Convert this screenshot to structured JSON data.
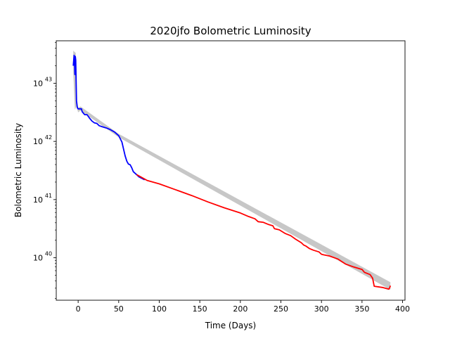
{
  "chart_data": {
    "type": "line",
    "title": "2020jfo Bolometric Luminosity",
    "xlabel": "Time (Days)",
    "ylabel": "Bolometric Luminosity",
    "xlim": [
      -27,
      403
    ],
    "ylim_log10": [
      39.27,
      43.73
    ],
    "y_scale": "log",
    "grid": false,
    "x_ticks": [
      0,
      50,
      100,
      150,
      200,
      250,
      300,
      350,
      400
    ],
    "y_ticks": [
      {
        "base": "10",
        "exp": "40",
        "log10": 40
      },
      {
        "base": "10",
        "exp": "41",
        "log10": 41
      },
      {
        "base": "10",
        "exp": "42",
        "log10": 42
      },
      {
        "base": "10",
        "exp": "43",
        "log10": 43
      }
    ],
    "uncertainty_band": {
      "color": "#999999",
      "upper": [
        [
          -6,
          43.56
        ],
        [
          -3,
          43.52
        ],
        [
          -2,
          42.7
        ],
        [
          0,
          42.58
        ],
        [
          3,
          42.6
        ],
        [
          50,
          42.13
        ],
        [
          385,
          39.58
        ]
      ],
      "lower": [
        [
          385,
          39.45
        ],
        [
          50,
          42.07
        ],
        [
          3,
          42.53
        ],
        [
          0,
          42.5
        ],
        [
          -2,
          42.6
        ],
        [
          -4,
          42.55
        ],
        [
          -6,
          43.2
        ]
      ]
    },
    "series": [
      {
        "color": "#0000ff",
        "points": [
          [
            -6,
            43.3
          ],
          [
            -5,
            43.48
          ],
          [
            -4.5,
            43.38
          ],
          [
            -4,
            43.15
          ],
          [
            -3.5,
            43.46
          ],
          [
            -3,
            43.4
          ],
          [
            -2,
            42.7
          ],
          [
            -1,
            42.58
          ],
          [
            0,
            42.56
          ],
          [
            2,
            42.56
          ],
          [
            4,
            42.56
          ],
          [
            5,
            42.51
          ],
          [
            8,
            42.46
          ],
          [
            11,
            42.46
          ],
          [
            14,
            42.4
          ],
          [
            17,
            42.35
          ],
          [
            20,
            42.32
          ],
          [
            23,
            42.31
          ],
          [
            26,
            42.27
          ],
          [
            30,
            42.25
          ],
          [
            35,
            42.23
          ],
          [
            40,
            42.2
          ],
          [
            45,
            42.16
          ],
          [
            50,
            42.1
          ],
          [
            54,
            41.99
          ],
          [
            56,
            41.87
          ],
          [
            58,
            41.75
          ],
          [
            60,
            41.66
          ],
          [
            62,
            41.61
          ],
          [
            64,
            41.6
          ],
          [
            66,
            41.55
          ],
          [
            68,
            41.48
          ],
          [
            72,
            41.43
          ],
          [
            75,
            41.39
          ],
          [
            78,
            41.37
          ],
          [
            82,
            41.34
          ]
        ]
      },
      {
        "color": "#ff0000",
        "points": [
          [
            72,
            41.43
          ],
          [
            85,
            41.33
          ],
          [
            100,
            41.27
          ],
          [
            120,
            41.17
          ],
          [
            140,
            41.07
          ],
          [
            160,
            40.96
          ],
          [
            180,
            40.86
          ],
          [
            200,
            40.77
          ],
          [
            210,
            40.71
          ],
          [
            218,
            40.67
          ],
          [
            222,
            40.62
          ],
          [
            228,
            40.61
          ],
          [
            235,
            40.57
          ],
          [
            240,
            40.55
          ],
          [
            242,
            40.5
          ],
          [
            248,
            40.48
          ],
          [
            255,
            40.42
          ],
          [
            262,
            40.38
          ],
          [
            268,
            40.32
          ],
          [
            275,
            40.26
          ],
          [
            278,
            40.22
          ],
          [
            281,
            40.2
          ],
          [
            285,
            40.16
          ],
          [
            290,
            40.13
          ],
          [
            297,
            40.1
          ],
          [
            300,
            40.06
          ],
          [
            303,
            40.05
          ],
          [
            310,
            40.03
          ],
          [
            320,
            39.98
          ],
          [
            330,
            39.89
          ],
          [
            340,
            39.84
          ],
          [
            350,
            39.8
          ],
          [
            353,
            39.75
          ],
          [
            360,
            39.71
          ],
          [
            363,
            39.65
          ],
          [
            365,
            39.51
          ],
          [
            375,
            39.49
          ],
          [
            383,
            39.46
          ],
          [
            384,
            39.48
          ],
          [
            385,
            39.52
          ]
        ]
      }
    ]
  }
}
